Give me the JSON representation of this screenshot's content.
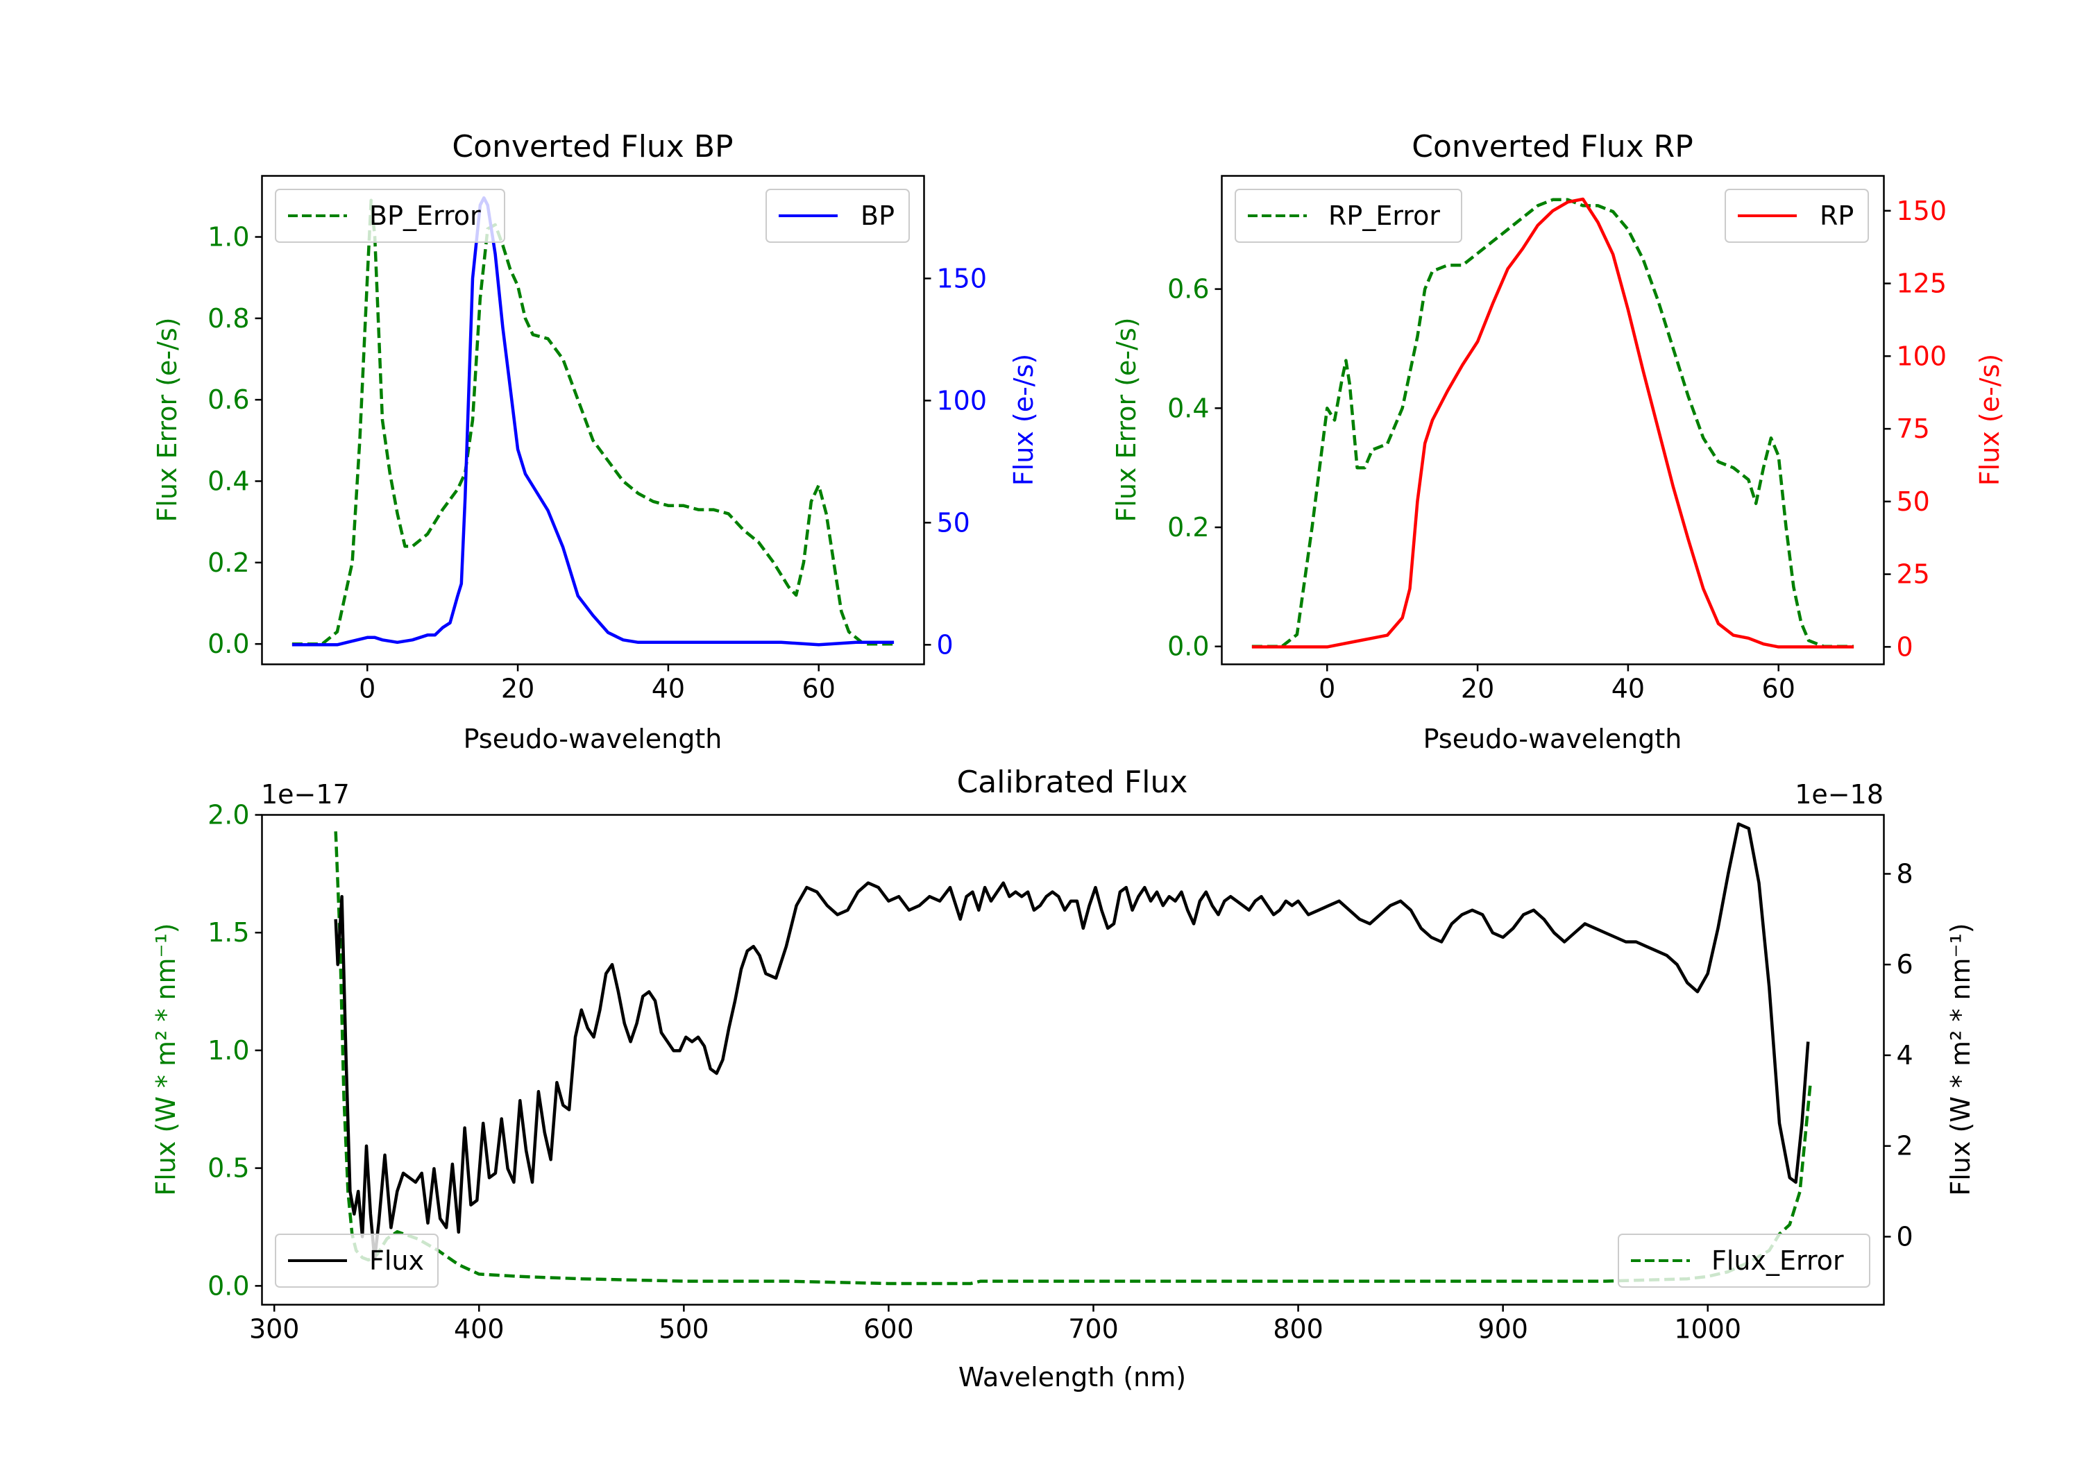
{
  "colors": {
    "green": "#008000",
    "blue": "#0000ff",
    "red": "#ff0000",
    "black": "#000000"
  },
  "chart_data": [
    {
      "type": "line",
      "title": "Converted Flux BP",
      "xlabel": "Pseudo-wavelength",
      "ylabel_left": "Flux Error (e-/s)",
      "ylabel_right": "Flux (e-/s)",
      "xlim": [
        -14,
        74
      ],
      "ylim_left": [
        -0.05,
        1.15
      ],
      "ylim_right": [
        -8,
        192
      ],
      "xticks": [
        0,
        20,
        40,
        60
      ],
      "yticks_left": [
        0.0,
        0.2,
        0.4,
        0.6,
        0.8,
        1.0
      ],
      "yticks_right": [
        0,
        50,
        100,
        150
      ],
      "legend_left": {
        "label": "BP_Error",
        "position": "upper-left"
      },
      "legend_right": {
        "label": "BP",
        "position": "upper-right"
      },
      "series": [
        {
          "name": "BP_Error",
          "axis": "left",
          "style": "dashed",
          "color": "#008000",
          "x": [
            -10,
            -6,
            -4,
            -2,
            -1,
            0,
            0.5,
            1,
            2,
            3,
            4,
            5,
            6,
            8,
            10,
            12,
            13,
            14,
            15,
            16,
            17,
            18,
            19,
            20,
            21,
            22,
            24,
            26,
            28,
            30,
            32,
            34,
            36,
            38,
            40,
            42,
            44,
            46,
            48,
            50,
            52,
            54,
            56,
            57,
            58,
            59,
            60,
            61,
            62,
            63,
            64,
            66,
            68,
            70
          ],
          "y": [
            0.0,
            0.0,
            0.03,
            0.2,
            0.5,
            0.9,
            1.09,
            1.0,
            0.55,
            0.42,
            0.32,
            0.24,
            0.24,
            0.27,
            0.33,
            0.38,
            0.42,
            0.55,
            0.85,
            1.02,
            1.03,
            0.98,
            0.92,
            0.88,
            0.8,
            0.76,
            0.75,
            0.7,
            0.6,
            0.5,
            0.45,
            0.4,
            0.37,
            0.35,
            0.34,
            0.34,
            0.33,
            0.33,
            0.32,
            0.28,
            0.25,
            0.2,
            0.14,
            0.12,
            0.2,
            0.35,
            0.39,
            0.32,
            0.2,
            0.08,
            0.03,
            0.0,
            0.0,
            0.0
          ]
        },
        {
          "name": "BP",
          "axis": "right",
          "style": "solid",
          "color": "#0000ff",
          "x": [
            -10,
            -4,
            0,
            1,
            2,
            4,
            6,
            8,
            9,
            10,
            11,
            12,
            12.5,
            13,
            14,
            15,
            15.5,
            16,
            17,
            18,
            19,
            20,
            21,
            22,
            24,
            26,
            28,
            30,
            32,
            34,
            36,
            38,
            40,
            45,
            50,
            55,
            60,
            65,
            70
          ],
          "y": [
            0,
            0,
            3,
            3,
            2,
            1,
            2,
            4,
            4,
            7,
            9,
            20,
            25,
            60,
            150,
            180,
            183,
            180,
            160,
            130,
            105,
            80,
            70,
            65,
            55,
            40,
            20,
            12,
            5,
            2,
            1,
            1,
            1,
            1,
            1,
            1,
            0,
            1,
            1
          ]
        }
      ]
    },
    {
      "type": "line",
      "title": "Converted Flux RP",
      "xlabel": "Pseudo-wavelength",
      "ylabel_left": "Flux Error (e-/s)",
      "ylabel_right": "Flux (e-/s)",
      "xlim": [
        -14,
        74
      ],
      "ylim_left": [
        -0.03,
        0.79
      ],
      "ylim_right": [
        -6,
        162
      ],
      "xticks": [
        0,
        20,
        40,
        60
      ],
      "yticks_left": [
        0.0,
        0.2,
        0.4,
        0.6
      ],
      "yticks_right": [
        0,
        25,
        50,
        75,
        100,
        125,
        150
      ],
      "legend_left": {
        "label": "RP_Error",
        "position": "upper-left"
      },
      "legend_right": {
        "label": "RP",
        "position": "upper-right"
      },
      "series": [
        {
          "name": "RP_Error",
          "axis": "left",
          "style": "dashed",
          "color": "#008000",
          "x": [
            -10,
            -6,
            -4,
            -2,
            -1,
            0,
            1,
            2,
            2.5,
            3,
            4,
            5,
            6,
            8,
            10,
            12,
            13,
            14,
            16,
            18,
            20,
            22,
            24,
            26,
            28,
            30,
            32,
            34,
            36,
            38,
            40,
            42,
            44,
            46,
            48,
            50,
            52,
            54,
            56,
            57,
            58,
            59,
            60,
            61,
            62,
            63,
            64,
            66,
            70
          ],
          "y": [
            0.0,
            0.0,
            0.02,
            0.2,
            0.3,
            0.4,
            0.38,
            0.45,
            0.48,
            0.44,
            0.3,
            0.3,
            0.33,
            0.34,
            0.4,
            0.52,
            0.6,
            0.63,
            0.64,
            0.64,
            0.66,
            0.68,
            0.7,
            0.72,
            0.74,
            0.75,
            0.75,
            0.74,
            0.74,
            0.73,
            0.7,
            0.65,
            0.58,
            0.5,
            0.42,
            0.35,
            0.31,
            0.3,
            0.28,
            0.24,
            0.3,
            0.35,
            0.32,
            0.2,
            0.1,
            0.04,
            0.01,
            0.0,
            0.0
          ]
        },
        {
          "name": "RP",
          "axis": "right",
          "style": "solid",
          "color": "#ff0000",
          "x": [
            -10,
            0,
            4,
            6,
            8,
            10,
            11,
            12,
            13,
            14,
            16,
            18,
            20,
            22,
            24,
            26,
            28,
            30,
            32,
            34,
            35,
            36,
            38,
            40,
            42,
            44,
            46,
            48,
            50,
            52,
            54,
            56,
            58,
            60,
            65,
            70
          ],
          "y": [
            0,
            0,
            2,
            3,
            4,
            10,
            20,
            50,
            70,
            78,
            88,
            97,
            105,
            118,
            130,
            137,
            145,
            150,
            153,
            154,
            150,
            146,
            135,
            116,
            95,
            75,
            55,
            37,
            20,
            8,
            4,
            3,
            1,
            0,
            0,
            0
          ]
        }
      ]
    },
    {
      "type": "line",
      "title": "Calibrated Flux",
      "xlabel": "Wavelength (nm)",
      "ylabel_left": "Flux (W * m² * nm⁻¹)",
      "ylabel_right": "Flux (W * m² * nm⁻¹)",
      "offset_left": "1e−17",
      "offset_right": "1e−18",
      "xlim": [
        294,
        1086
      ],
      "ylim_left": [
        -0.08,
        2.0
      ],
      "ylim_right": [
        -1.5,
        9.3
      ],
      "xticks": [
        300,
        400,
        500,
        600,
        700,
        800,
        900,
        1000
      ],
      "yticks_left": [
        0.0,
        0.5,
        1.0,
        1.5,
        2.0
      ],
      "yticks_right": [
        0,
        2,
        4,
        6,
        8
      ],
      "legend_left": {
        "label": "Flux",
        "position": "lower-left"
      },
      "legend_right": {
        "label": "Flux_Error",
        "position": "lower-right"
      },
      "series": [
        {
          "name": "Flux_Error",
          "axis": "left",
          "style": "dashed",
          "color": "#008000",
          "x": [
            330,
            332,
            334,
            336,
            338,
            340,
            343,
            346,
            350,
            355,
            360,
            370,
            380,
            390,
            400,
            420,
            450,
            500,
            550,
            600,
            640,
            645,
            650,
            700,
            750,
            800,
            850,
            900,
            950,
            990,
            1000,
            1010,
            1020,
            1030,
            1035,
            1040,
            1045,
            1050
          ],
          "y": [
            1.93,
            1.5,
            0.8,
            0.4,
            0.22,
            0.15,
            0.12,
            0.11,
            0.13,
            0.2,
            0.23,
            0.2,
            0.15,
            0.09,
            0.05,
            0.04,
            0.03,
            0.02,
            0.02,
            0.01,
            0.01,
            0.02,
            0.02,
            0.02,
            0.02,
            0.02,
            0.02,
            0.02,
            0.02,
            0.03,
            0.04,
            0.06,
            0.1,
            0.15,
            0.22,
            0.26,
            0.4,
            0.85
          ]
        },
        {
          "name": "Flux",
          "axis": "right",
          "style": "solid",
          "color": "#000000",
          "x": [
            330,
            331,
            333,
            335,
            337,
            339,
            341,
            343,
            345,
            347,
            349,
            351,
            354,
            357,
            360,
            363,
            366,
            369,
            372,
            375,
            378,
            381,
            384,
            387,
            390,
            393,
            396,
            399,
            402,
            405,
            408,
            411,
            414,
            417,
            420,
            423,
            426,
            429,
            432,
            435,
            438,
            441,
            444,
            447,
            450,
            453,
            456,
            459,
            462,
            465,
            468,
            471,
            474,
            477,
            480,
            483,
            486,
            489,
            492,
            495,
            498,
            501,
            504,
            507,
            510,
            513,
            516,
            519,
            522,
            525,
            528,
            531,
            534,
            537,
            540,
            545,
            550,
            555,
            560,
            565,
            570,
            575,
            580,
            585,
            590,
            595,
            600,
            605,
            610,
            615,
            620,
            625,
            630,
            635,
            638,
            641,
            644,
            647,
            650,
            653,
            656,
            659,
            662,
            665,
            668,
            671,
            674,
            677,
            680,
            683,
            686,
            689,
            692,
            695,
            698,
            701,
            704,
            707,
            710,
            713,
            716,
            719,
            722,
            725,
            728,
            731,
            734,
            737,
            740,
            743,
            746,
            749,
            752,
            755,
            758,
            761,
            764,
            767,
            770,
            773,
            776,
            779,
            782,
            785,
            788,
            791,
            794,
            797,
            800,
            805,
            810,
            815,
            820,
            825,
            830,
            835,
            840,
            845,
            850,
            855,
            860,
            865,
            870,
            875,
            880,
            885,
            890,
            895,
            900,
            905,
            910,
            915,
            920,
            925,
            930,
            935,
            940,
            945,
            950,
            955,
            960,
            965,
            970,
            975,
            980,
            985,
            990,
            995,
            1000,
            1005,
            1010,
            1015,
            1020,
            1025,
            1030,
            1035,
            1040,
            1043,
            1046,
            1049
          ],
          "y": [
            7.0,
            6.0,
            7.5,
            4.0,
            1.0,
            0.5,
            1.0,
            0.0,
            2.0,
            0.5,
            -0.5,
            0.3,
            1.8,
            0.2,
            1.0,
            1.4,
            1.3,
            1.2,
            1.4,
            0.3,
            1.5,
            0.4,
            0.2,
            1.6,
            0.1,
            2.4,
            0.7,
            0.8,
            2.5,
            1.3,
            1.4,
            2.6,
            1.5,
            1.2,
            3.0,
            1.9,
            1.2,
            3.2,
            2.3,
            1.7,
            3.4,
            2.9,
            2.8,
            4.4,
            5.0,
            4.6,
            4.4,
            5.0,
            5.8,
            6.0,
            5.4,
            4.7,
            4.3,
            4.7,
            5.3,
            5.4,
            5.2,
            4.5,
            4.3,
            4.1,
            4.1,
            4.4,
            4.3,
            4.4,
            4.2,
            3.7,
            3.6,
            3.9,
            4.6,
            5.2,
            5.9,
            6.3,
            6.4,
            6.2,
            5.8,
            5.7,
            6.4,
            7.3,
            7.7,
            7.6,
            7.3,
            7.1,
            7.2,
            7.6,
            7.8,
            7.7,
            7.4,
            7.5,
            7.2,
            7.3,
            7.5,
            7.4,
            7.7,
            7.0,
            7.5,
            7.6,
            7.2,
            7.7,
            7.4,
            7.6,
            7.8,
            7.5,
            7.6,
            7.5,
            7.6,
            7.2,
            7.3,
            7.5,
            7.6,
            7.5,
            7.2,
            7.4,
            7.4,
            6.8,
            7.3,
            7.7,
            7.2,
            6.8,
            6.9,
            7.6,
            7.7,
            7.2,
            7.5,
            7.7,
            7.4,
            7.6,
            7.3,
            7.5,
            7.4,
            7.6,
            7.2,
            6.9,
            7.4,
            7.6,
            7.3,
            7.1,
            7.4,
            7.5,
            7.4,
            7.3,
            7.2,
            7.4,
            7.5,
            7.3,
            7.1,
            7.2,
            7.4,
            7.3,
            7.4,
            7.1,
            7.2,
            7.3,
            7.4,
            7.2,
            7.0,
            6.9,
            7.1,
            7.3,
            7.4,
            7.2,
            6.8,
            6.6,
            6.5,
            6.9,
            7.1,
            7.2,
            7.1,
            6.7,
            6.6,
            6.8,
            7.1,
            7.2,
            7.0,
            6.7,
            6.5,
            6.7,
            6.9,
            6.8,
            6.7,
            6.6,
            6.5,
            6.5,
            6.4,
            6.3,
            6.2,
            6.0,
            5.6,
            5.4,
            5.8,
            6.8,
            8.0,
            9.1,
            9.0,
            7.8,
            5.5,
            2.5,
            1.3,
            1.2,
            2.5,
            4.3
          ]
        }
      ]
    }
  ]
}
